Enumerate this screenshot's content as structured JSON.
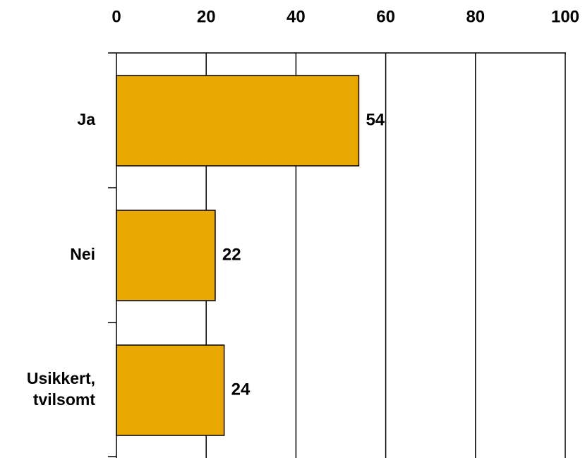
{
  "chart_data": {
    "type": "bar",
    "orientation": "horizontal",
    "categories": [
      [
        "Ja"
      ],
      [
        "Nei"
      ],
      [
        "Usikkert,",
        "tvilsomt"
      ]
    ],
    "values": [
      54,
      22,
      24
    ],
    "data_labels": [
      "54",
      "22",
      "24"
    ],
    "xlim": [
      0,
      100
    ],
    "x_ticks": [
      0,
      20,
      40,
      60,
      80,
      100
    ],
    "x_tick_labels": [
      "0",
      "20",
      "40",
      "60",
      "80",
      "100"
    ],
    "x_axis_position": "top",
    "grid": "vertical",
    "title": "",
    "xlabel": "",
    "ylabel": "",
    "colors": {
      "bar": "#E8A800",
      "bar_edge": "#000000",
      "grid": "#000000"
    }
  }
}
